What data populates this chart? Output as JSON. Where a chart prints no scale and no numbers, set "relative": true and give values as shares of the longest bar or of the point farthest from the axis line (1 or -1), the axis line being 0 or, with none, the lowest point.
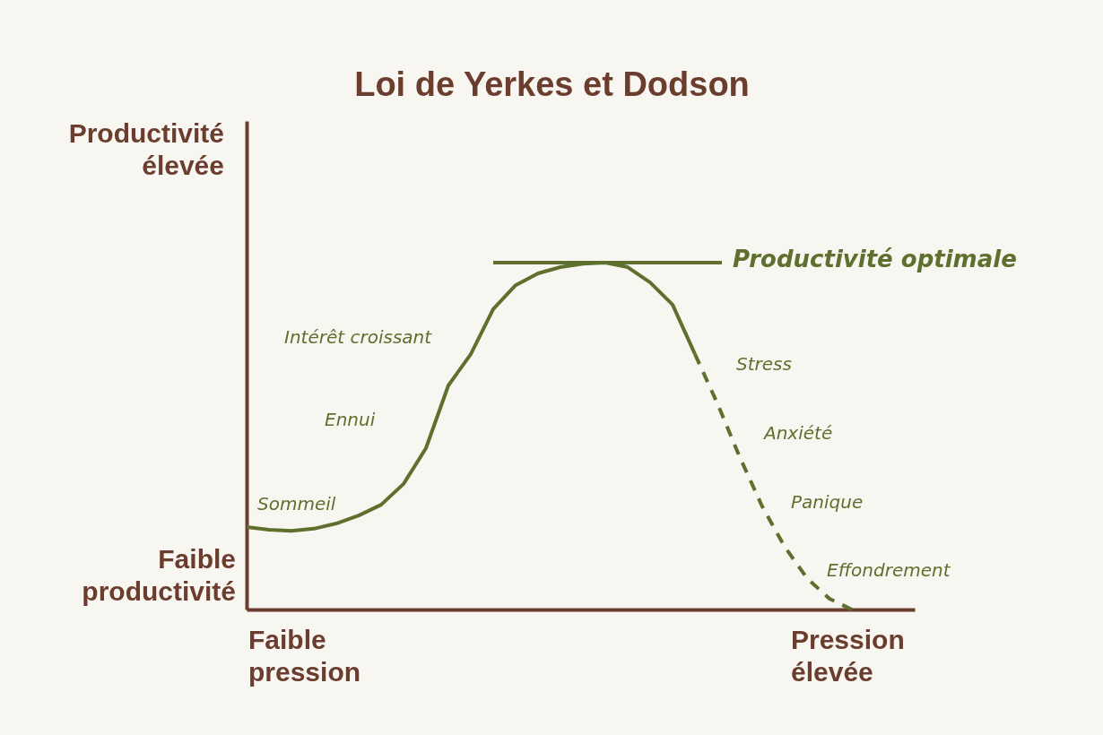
{
  "chart_data": {
    "type": "line",
    "title": "Loi de Yerkes et Dodson",
    "relative": true,
    "categories": [
      null,
      null,
      null,
      null,
      null,
      null,
      null,
      null,
      null,
      null,
      null,
      null,
      null,
      null,
      null,
      null,
      null,
      null,
      null,
      null,
      null,
      null,
      null,
      null,
      null,
      null,
      null,
      null
    ],
    "series": [
      {
        "color": "#5e6f2e",
        "line_style": "solid",
        "values": [
          0.238,
          0.23,
          0.227,
          0.233,
          0.248,
          0.271,
          0.302,
          0.362,
          0.465,
          0.646,
          0.736,
          0.866,
          0.935,
          0.969,
          0.987,
          0.997,
          1,
          0.987,
          0.943,
          0.879,
          0.736,
          null,
          null,
          null,
          null,
          null,
          null,
          null
        ]
      },
      {
        "color": "#5e6f2e",
        "line_style": "dashed",
        "values": [
          null,
          null,
          null,
          null,
          null,
          null,
          null,
          null,
          null,
          null,
          null,
          null,
          null,
          null,
          null,
          null,
          null,
          null,
          null,
          null,
          0.736,
          0.594,
          0.439,
          0.297,
          0.181,
          0.09,
          0.031,
          0
        ]
      }
    ],
    "ref_lines": [
      {
        "axis": "y",
        "value": 1,
        "label": "Productivité optimale",
        "color": "#5e6f2e"
      }
    ],
    "annotations": [
      "Productivité élevée",
      "Faible productivité",
      "Faible pression",
      "Pression élevée",
      "Sommeil",
      "Ennui",
      "Intérêt croissant",
      "Stress",
      "Anxiété",
      "Panique",
      "Effondrement"
    ]
  }
}
